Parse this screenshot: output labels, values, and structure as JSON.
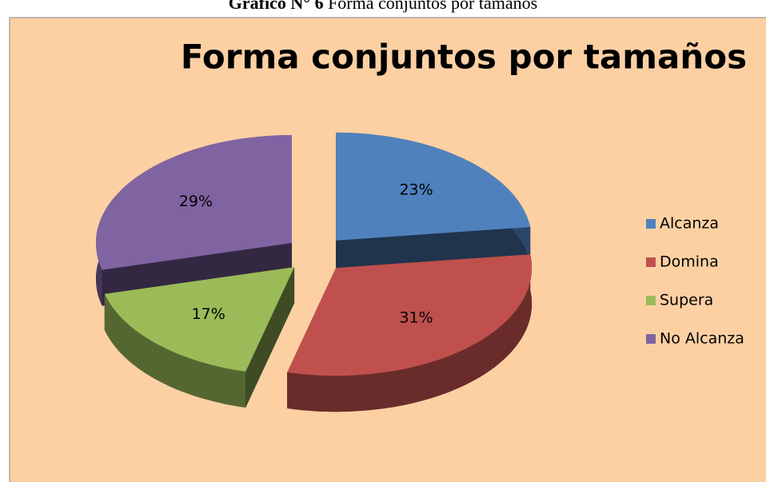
{
  "caption_label": "Gráfico N° 6",
  "caption_text": "Forma conjuntos por tamaños",
  "chart_data": {
    "type": "pie",
    "title": "Forma conjuntos por tamaños",
    "categories": [
      "Alcanza",
      "Domina",
      "Supera",
      "No Alcanza"
    ],
    "values": [
      23,
      31,
      17,
      29
    ],
    "value_labels": [
      "23%",
      "31%",
      "17%",
      "29%"
    ],
    "colors": [
      "#4f81bd",
      "#c0504d",
      "#9bbb59",
      "#8064a2"
    ],
    "legend": "right"
  }
}
